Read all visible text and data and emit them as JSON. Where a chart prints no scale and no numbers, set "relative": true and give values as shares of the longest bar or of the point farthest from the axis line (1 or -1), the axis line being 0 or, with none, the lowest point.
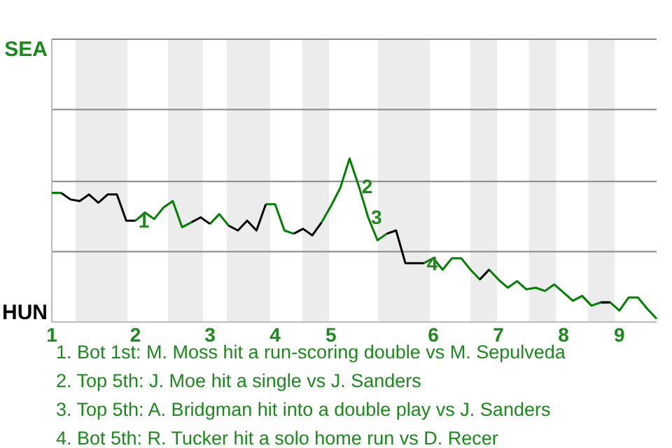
{
  "chart_data": {
    "type": "line",
    "relative": true,
    "categories": [
      "1",
      null,
      null,
      null,
      null,
      null,
      null,
      null,
      null,
      "2",
      null,
      null,
      null,
      null,
      null,
      null,
      null,
      "3",
      null,
      null,
      null,
      null,
      null,
      null,
      "4",
      null,
      null,
      null,
      null,
      null,
      "5",
      null,
      null,
      null,
      null,
      null,
      null,
      null,
      null,
      null,
      null,
      "6",
      null,
      null,
      null,
      null,
      null,
      null,
      "7",
      null,
      null,
      null,
      null,
      null,
      null,
      "8",
      null,
      null,
      null,
      null,
      null,
      "9",
      null,
      null,
      null,
      null
    ],
    "series": [
      {
        "color": "#008000",
        "values": [
          0.79,
          0.79,
          null,
          null,
          null,
          null,
          null,
          null,
          null,
          0.62,
          0.67,
          0.63,
          0.7,
          0.74,
          0.58,
          0.61,
          null,
          0.6,
          0.66,
          0.59,
          null,
          null,
          null,
          0.72,
          0.72,
          0.56,
          0.54,
          null,
          null,
          0.61,
          0.71,
          0.82,
          1,
          0.83,
          0.64,
          0.5,
          0.54,
          null,
          null,
          null,
          0.36,
          0.39,
          0.32,
          0.39,
          0.39,
          0.32,
          0.26,
          0.32,
          0.26,
          0.21,
          0.25,
          0.2,
          0.21,
          0.19,
          0.23,
          0.18,
          0.13,
          0.16,
          0.1,
          0.12,
          0.12,
          0.07,
          0.15,
          0.15,
          0.08,
          0.02
        ]
      },
      {
        "color": "#000000",
        "values": [
          null,
          0.79,
          0.75,
          0.74,
          0.78,
          0.73,
          0.78,
          0.78,
          0.62,
          0.62,
          null,
          null,
          null,
          null,
          null,
          0.61,
          0.64,
          0.6,
          null,
          0.59,
          0.56,
          0.62,
          0.56,
          0.72,
          null,
          null,
          0.54,
          0.57,
          0.53,
          0.61,
          null,
          null,
          null,
          null,
          null,
          null,
          0.54,
          0.56,
          0.36,
          0.36,
          0.36,
          null,
          null,
          null,
          null,
          null,
          0.26,
          0.32,
          null,
          null,
          null,
          null,
          null,
          null,
          null,
          null,
          null,
          null,
          null,
          0.12,
          0.12,
          null,
          null,
          null,
          null,
          null
        ]
      }
    ],
    "ref_lines": [
      {
        "axis": "y",
        "value": 0.43,
        "color": "#888888"
      },
      {
        "axis": "y",
        "value": 0.86,
        "color": "#888888"
      },
      {
        "axis": "y",
        "value": 1.3,
        "color": "#888888"
      },
      {
        "axis": "y",
        "value": 1.73,
        "color": "#888888"
      }
    ],
    "annotations": [
      "SEA",
      "HUN",
      {
        "text": "1",
        "y": 0.62
      },
      {
        "text": "2",
        "y": 0.83
      },
      {
        "text": "3",
        "y": 0.64
      },
      {
        "text": "4",
        "y": 0.36
      },
      "1. Bot 1st: M. Moss hit a run-scoring double vs M. Sepulveda",
      "2. Top 5th: J. Moe hit a single vs J. Sanders",
      "3. Top 5th: A. Bridgman hit into a double play vs J. Sanders",
      "4. Bot 5th: R. Tucker hit a solo home run vs D. Recer"
    ]
  }
}
